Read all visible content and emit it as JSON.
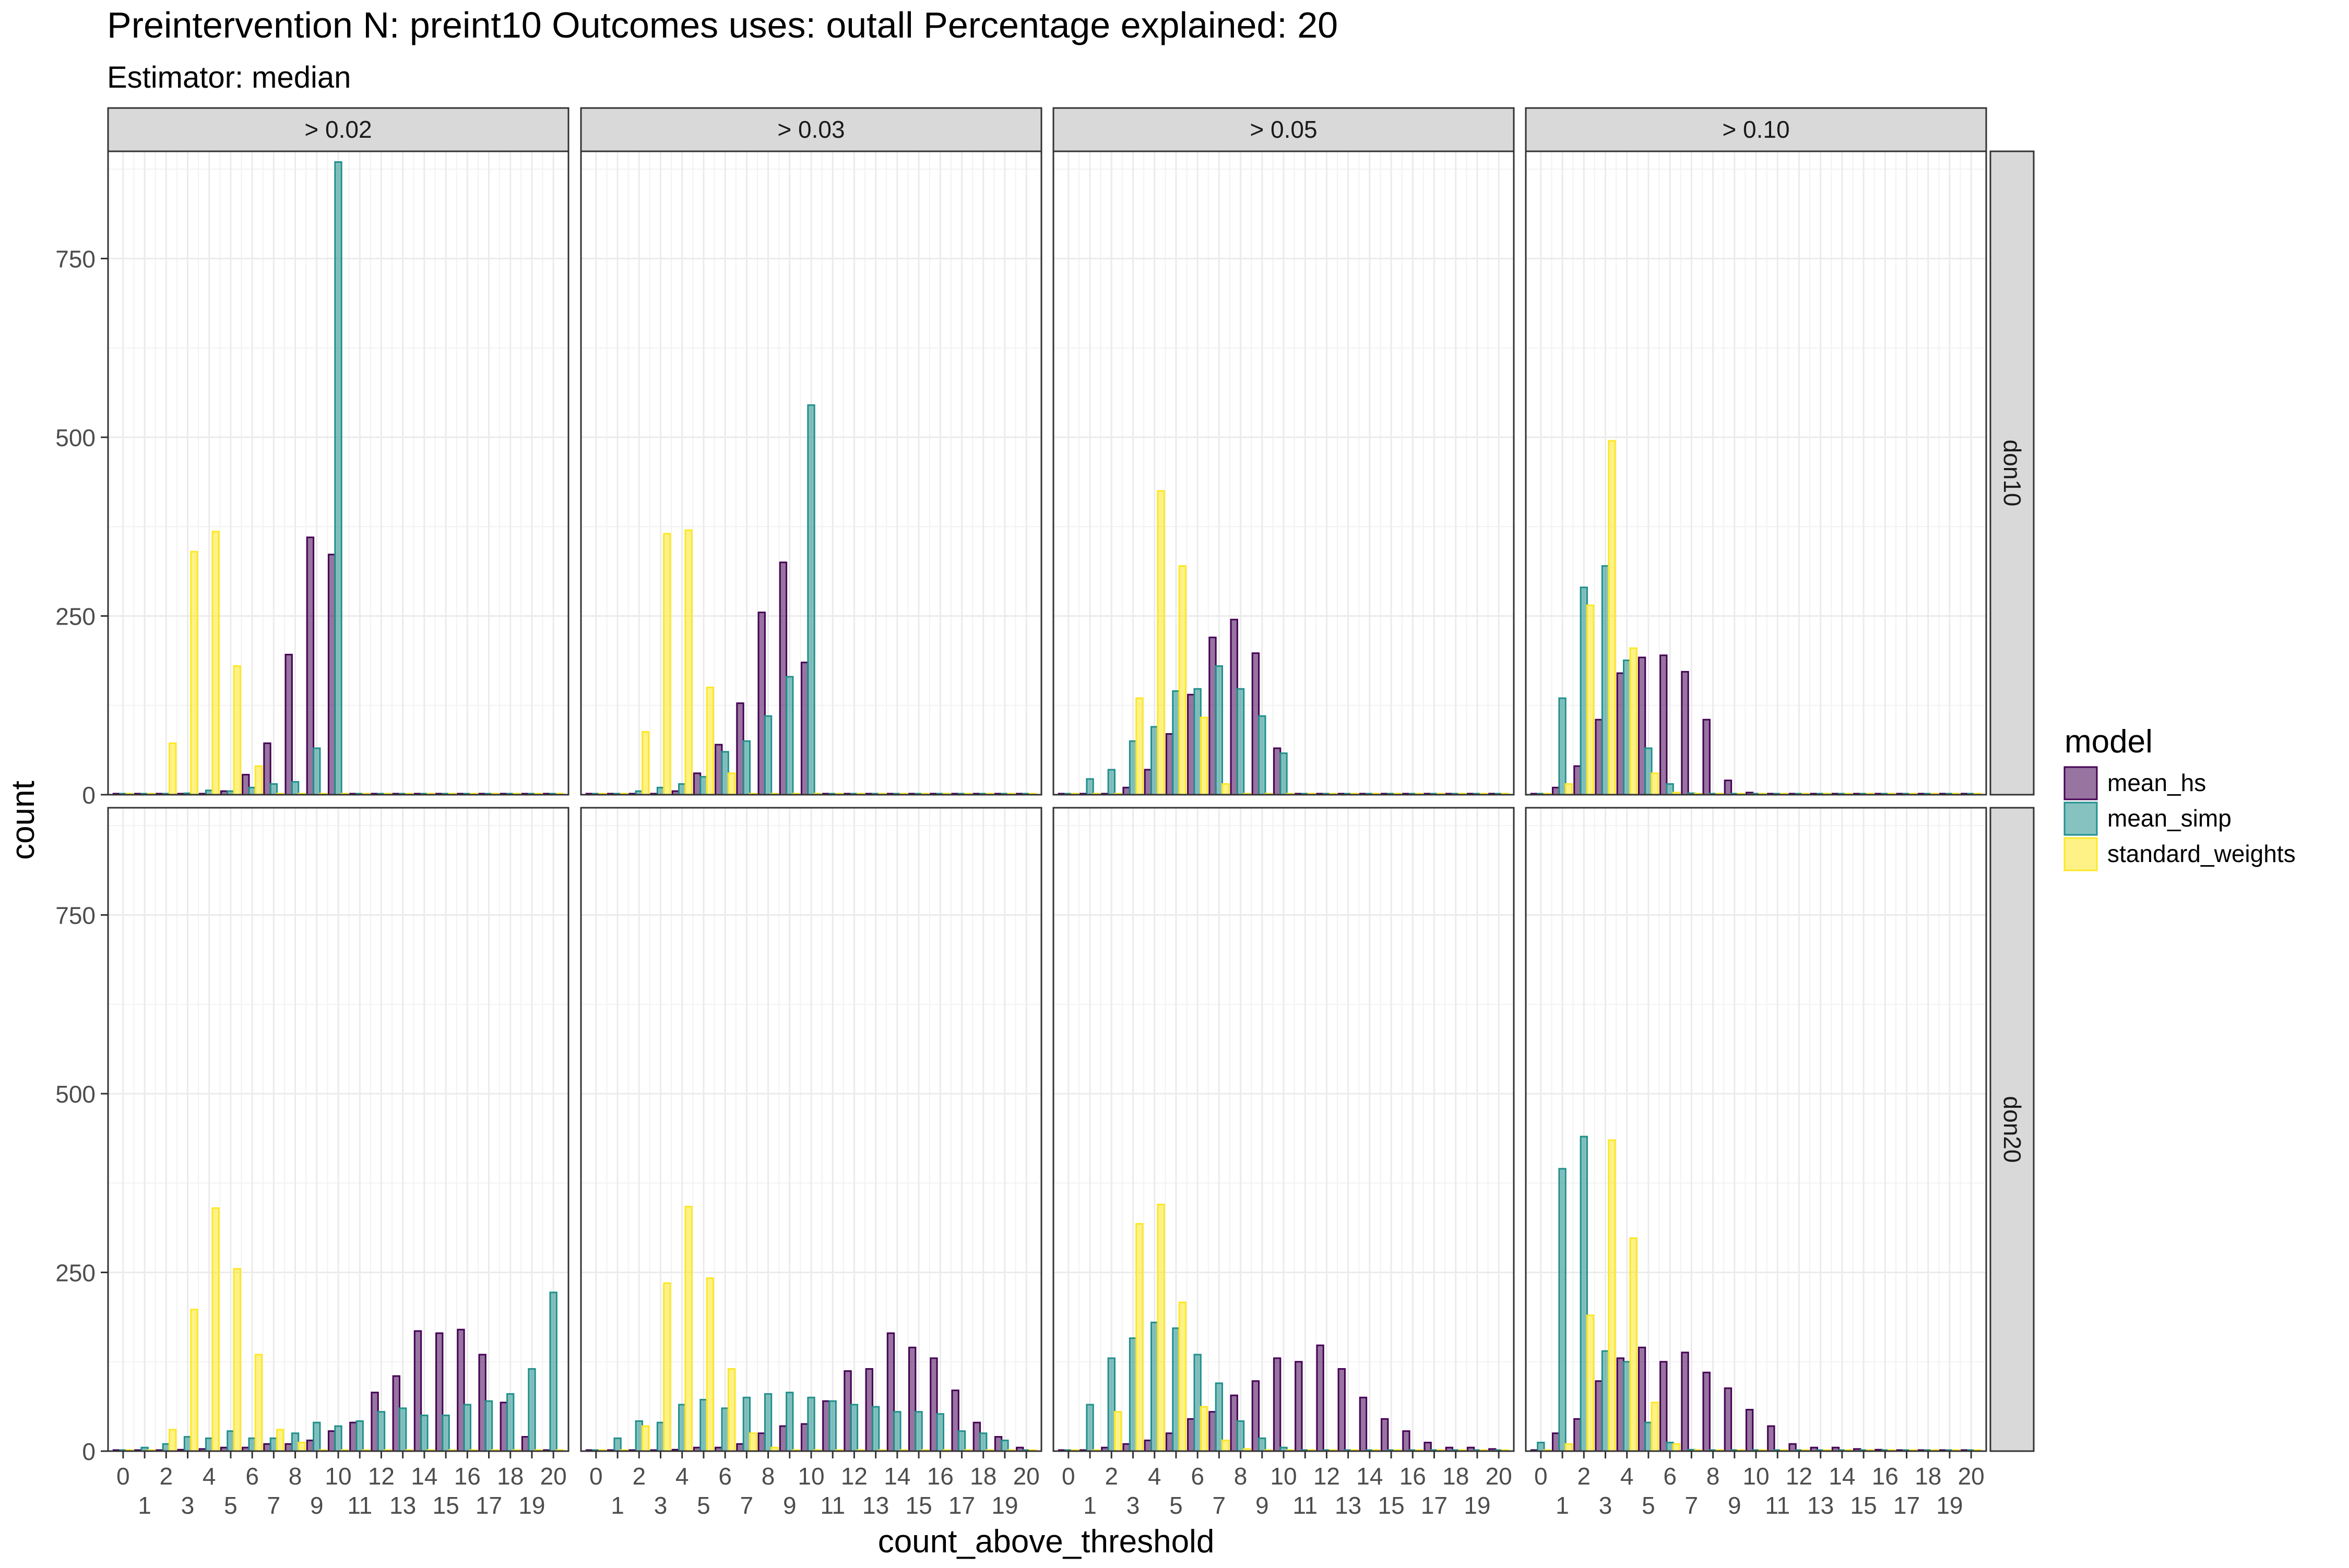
{
  "chart_data": {
    "type": "bar",
    "title": "Preintervention N: preint10 Outcomes uses: outall Percentage explained: 20",
    "subtitle": "Estimator: median",
    "xlabel": "count_above_threshold",
    "ylabel": "count",
    "ylim": [
      0,
      900
    ],
    "yticks": [
      0,
      250,
      500,
      750
    ],
    "xticks": [
      0,
      1,
      2,
      3,
      4,
      5,
      6,
      7,
      8,
      9,
      10,
      11,
      12,
      13,
      14,
      15,
      16,
      17,
      18,
      19,
      20
    ],
    "grid": true,
    "legend_position": "right",
    "legend_title": "model",
    "facet_cols": [
      "> 0.02",
      "> 0.03",
      "> 0.05",
      "> 0.10"
    ],
    "facet_rows": [
      "don10",
      "don20"
    ],
    "series": [
      {
        "name": "mean_hs",
        "color": "#440154"
      },
      {
        "name": "mean_simp",
        "color": "#21908C"
      },
      {
        "name": "standard_weights",
        "color": "#FDE725"
      }
    ],
    "panels": [
      {
        "row": "don10",
        "col": "> 0.02",
        "mean_hs": [
          0,
          0,
          0,
          0,
          0,
          5,
          28,
          72,
          196,
          360,
          336,
          0,
          0,
          0,
          0,
          0,
          0,
          0,
          0,
          0,
          0
        ],
        "mean_simp": [
          0,
          0,
          0,
          2,
          6,
          5,
          10,
          15,
          18,
          65,
          885,
          0,
          0,
          0,
          0,
          0,
          0,
          0,
          0,
          0,
          0
        ],
        "standard_weights": [
          0,
          0,
          72,
          340,
          368,
          180,
          40,
          0,
          0,
          0,
          0,
          0,
          0,
          0,
          0,
          0,
          0,
          0,
          0,
          0,
          0
        ]
      },
      {
        "row": "don10",
        "col": "> 0.03",
        "mean_hs": [
          0,
          0,
          0,
          0,
          5,
          30,
          70,
          128,
          255,
          325,
          185,
          0,
          0,
          0,
          0,
          0,
          0,
          0,
          0,
          0,
          0
        ],
        "mean_simp": [
          0,
          0,
          5,
          10,
          15,
          25,
          60,
          75,
          110,
          165,
          545,
          0,
          0,
          0,
          0,
          0,
          0,
          0,
          0,
          0,
          0
        ],
        "standard_weights": [
          0,
          0,
          88,
          365,
          370,
          150,
          30,
          0,
          0,
          0,
          0,
          0,
          0,
          0,
          0,
          0,
          0,
          0,
          0,
          0,
          0
        ]
      },
      {
        "row": "don10",
        "col": "> 0.05",
        "mean_hs": [
          0,
          0,
          0,
          10,
          35,
          85,
          140,
          220,
          245,
          198,
          65,
          0,
          0,
          0,
          0,
          0,
          0,
          0,
          0,
          0,
          0
        ],
        "mean_simp": [
          0,
          22,
          35,
          75,
          95,
          145,
          148,
          180,
          148,
          110,
          58,
          0,
          0,
          0,
          0,
          0,
          0,
          0,
          0,
          0,
          0
        ],
        "standard_weights": [
          0,
          0,
          0,
          135,
          425,
          320,
          108,
          15,
          0,
          0,
          0,
          0,
          0,
          0,
          0,
          0,
          0,
          0,
          0,
          0,
          0
        ]
      },
      {
        "row": "don10",
        "col": "> 0.10",
        "mean_hs": [
          0,
          10,
          40,
          105,
          170,
          192,
          195,
          172,
          105,
          20,
          3,
          0,
          0,
          0,
          0,
          0,
          0,
          0,
          0,
          0,
          0
        ],
        "mean_simp": [
          0,
          135,
          290,
          320,
          188,
          65,
          15,
          2,
          0,
          0,
          0,
          0,
          0,
          0,
          0,
          0,
          0,
          0,
          0,
          0,
          0
        ],
        "standard_weights": [
          0,
          15,
          265,
          495,
          205,
          30,
          3,
          0,
          0,
          0,
          0,
          0,
          0,
          0,
          0,
          0,
          0,
          0,
          0,
          0,
          0
        ]
      },
      {
        "row": "don20",
        "col": "> 0.02",
        "mean_hs": [
          0,
          0,
          0,
          2,
          3,
          5,
          5,
          10,
          10,
          15,
          28,
          40,
          82,
          105,
          168,
          165,
          170,
          135,
          68,
          20,
          0
        ],
        "mean_simp": [
          0,
          5,
          10,
          20,
          18,
          28,
          18,
          18,
          25,
          40,
          35,
          42,
          55,
          60,
          50,
          50,
          65,
          70,
          80,
          115,
          222
        ],
        "standard_weights": [
          0,
          0,
          30,
          198,
          340,
          255,
          135,
          30,
          12,
          0,
          0,
          0,
          0,
          0,
          0,
          0,
          0,
          0,
          0,
          0,
          0
        ]
      },
      {
        "row": "don20",
        "col": "> 0.03",
        "mean_hs": [
          0,
          0,
          0,
          0,
          2,
          5,
          5,
          10,
          25,
          35,
          38,
          70,
          112,
          115,
          165,
          145,
          130,
          85,
          40,
          20,
          5
        ],
        "mean_simp": [
          0,
          18,
          42,
          40,
          65,
          72,
          60,
          75,
          80,
          82,
          75,
          70,
          65,
          62,
          55,
          55,
          52,
          28,
          25,
          15,
          0
        ],
        "standard_weights": [
          0,
          0,
          35,
          235,
          342,
          242,
          115,
          25,
          5,
          0,
          0,
          0,
          0,
          0,
          0,
          0,
          0,
          0,
          0,
          0,
          0
        ]
      },
      {
        "row": "don20",
        "col": "> 0.05",
        "mean_hs": [
          0,
          0,
          5,
          10,
          15,
          25,
          45,
          55,
          78,
          98,
          130,
          125,
          148,
          115,
          75,
          45,
          28,
          12,
          5,
          5,
          3
        ],
        "mean_simp": [
          0,
          65,
          130,
          158,
          180,
          172,
          135,
          95,
          42,
          18,
          5,
          0,
          0,
          0,
          0,
          0,
          0,
          0,
          0,
          0,
          0
        ],
        "standard_weights": [
          0,
          0,
          55,
          318,
          345,
          208,
          62,
          15,
          3,
          0,
          0,
          0,
          0,
          0,
          0,
          0,
          0,
          0,
          0,
          0,
          0
        ]
      },
      {
        "row": "don20",
        "col": "> 0.10",
        "mean_hs": [
          0,
          25,
          45,
          98,
          130,
          145,
          125,
          138,
          110,
          88,
          58,
          35,
          10,
          5,
          5,
          3,
          2,
          0,
          0,
          0,
          0
        ],
        "mean_simp": [
          12,
          395,
          440,
          140,
          125,
          40,
          12,
          2,
          0,
          0,
          0,
          0,
          0,
          0,
          0,
          0,
          0,
          0,
          0,
          0,
          0
        ],
        "standard_weights": [
          0,
          10,
          190,
          435,
          298,
          68,
          10,
          0,
          0,
          0,
          0,
          0,
          0,
          0,
          0,
          0,
          0,
          0,
          0,
          0,
          0
        ]
      }
    ]
  }
}
